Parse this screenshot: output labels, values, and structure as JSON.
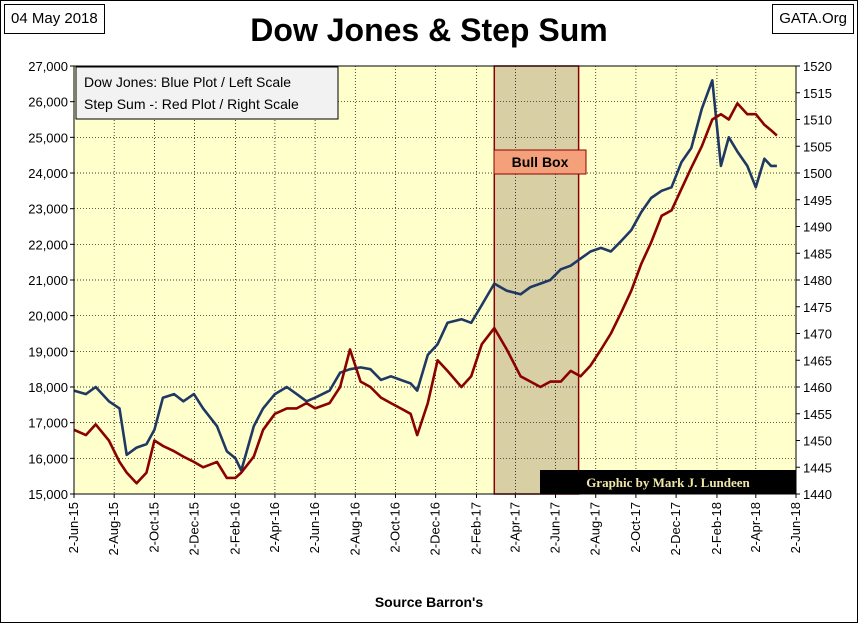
{
  "header": {
    "date": "04 May 2018",
    "source_site": "GATA.Org",
    "title": "Dow Jones & Step Sum"
  },
  "footer": {
    "source": "Source Barron's"
  },
  "legend_lines": [
    "Dow Jones: Blue Plot / Left Scale",
    "Step Sum -: Red Plot / Right Scale"
  ],
  "bull_box_label": "Bull Box",
  "credit": "Graphic by Mark J. Lundeen",
  "colors": {
    "plot_background": "#FFFFCC",
    "dow": "#1F3864",
    "step_sum": "#8B0000",
    "bull_box_fill": "#D9CFA4",
    "bull_box_label_fill": "#F4A07A",
    "bull_box_border": "#8B0000",
    "legend_fill": "#F2F2F2",
    "credit_fill": "#000000",
    "credit_text": "#F2E6A6",
    "grid": "#000000"
  },
  "chart_data": {
    "type": "line",
    "title": "Dow Jones & Step Sum",
    "x_tick_labels": [
      "2-Jun-15",
      "2-Aug-15",
      "2-Oct-15",
      "2-Dec-15",
      "2-Feb-16",
      "2-Apr-16",
      "2-Jun-16",
      "2-Aug-16",
      "2-Oct-16",
      "2-Dec-16",
      "2-Feb-17",
      "2-Apr-17",
      "2-Jun-17",
      "2-Aug-17",
      "2-Oct-17",
      "2-Dec-17",
      "2-Feb-18",
      "2-Apr-18",
      "2-Jun-18"
    ],
    "xlim": [
      "2015-06-02",
      "2018-06-02"
    ],
    "left_axis": {
      "ylim": [
        15000,
        27000
      ],
      "ticks": [
        15000,
        16000,
        17000,
        18000,
        19000,
        20000,
        21000,
        22000,
        23000,
        24000,
        25000,
        26000,
        27000
      ],
      "tick_labels": [
        "15,000",
        "16,000",
        "17,000",
        "18,000",
        "19,000",
        "20,000",
        "21,000",
        "22,000",
        "23,000",
        "24,000",
        "25,000",
        "26,000",
        "27,000"
      ]
    },
    "right_axis": {
      "ylim": [
        1440,
        1520
      ],
      "ticks": [
        1440,
        1445,
        1450,
        1455,
        1460,
        1465,
        1470,
        1475,
        1480,
        1485,
        1490,
        1495,
        1500,
        1505,
        1510,
        1515,
        1520
      ],
      "tick_labels": [
        "1440",
        "1445",
        "1450",
        "1455",
        "1460",
        "1465",
        "1470",
        "1475",
        "1480",
        "1485",
        "1490",
        "1495",
        "1500",
        "1505",
        "1510",
        "1515",
        "1520"
      ]
    },
    "grid": true,
    "bull_box_range": [
      "2017-03-01",
      "2017-07-07"
    ],
    "series": [
      {
        "axis": "left",
        "x": [
          "2015-06-02",
          "2015-06-20",
          "2015-07-05",
          "2015-07-25",
          "2015-08-10",
          "2015-08-21",
          "2015-09-05",
          "2015-09-20",
          "2015-10-02",
          "2015-10-15",
          "2015-11-01",
          "2015-11-15",
          "2015-12-01",
          "2015-12-15",
          "2016-01-05",
          "2016-01-20",
          "2016-02-02",
          "2016-02-11",
          "2016-03-01",
          "2016-03-15",
          "2016-04-02",
          "2016-04-20",
          "2016-05-05",
          "2016-05-20",
          "2016-06-02",
          "2016-06-24",
          "2016-07-10",
          "2016-07-25",
          "2016-08-10",
          "2016-08-25",
          "2016-09-10",
          "2016-09-25",
          "2016-10-10",
          "2016-10-25",
          "2016-11-04",
          "2016-11-20",
          "2016-12-05",
          "2016-12-20",
          "2017-01-10",
          "2017-01-25",
          "2017-02-10",
          "2017-03-01",
          "2017-03-20",
          "2017-04-10",
          "2017-04-25",
          "2017-05-10",
          "2017-05-25",
          "2017-06-10",
          "2017-06-25",
          "2017-07-10",
          "2017-07-25",
          "2017-08-10",
          "2017-08-25",
          "2017-09-10",
          "2017-09-25",
          "2017-10-10",
          "2017-10-25",
          "2017-11-10",
          "2017-11-25",
          "2017-12-10",
          "2017-12-25",
          "2018-01-10",
          "2018-01-26",
          "2018-02-08",
          "2018-02-20",
          "2018-03-05",
          "2018-03-20",
          "2018-04-02",
          "2018-04-15",
          "2018-04-25",
          "2018-05-04"
        ],
        "y": [
          17900,
          17800,
          18000,
          17600,
          17400,
          16100,
          16300,
          16400,
          16800,
          17700,
          17800,
          17600,
          17800,
          17400,
          16900,
          16200,
          16000,
          15660,
          16900,
          17400,
          17800,
          18000,
          17800,
          17600,
          17700,
          17900,
          18400,
          18500,
          18550,
          18500,
          18200,
          18300,
          18200,
          18100,
          17900,
          18900,
          19200,
          19800,
          19900,
          19800,
          20300,
          20900,
          20700,
          20600,
          20800,
          20900,
          21000,
          21300,
          21400,
          21600,
          21800,
          21900,
          21800,
          22100,
          22400,
          22900,
          23300,
          23500,
          23600,
          24300,
          24700,
          25800,
          26600,
          24200,
          25000,
          24600,
          24200,
          23600,
          24400,
          24200,
          24200
        ]
      },
      {
        "axis": "right",
        "x": [
          "2015-06-02",
          "2015-06-20",
          "2015-07-05",
          "2015-07-25",
          "2015-08-10",
          "2015-08-21",
          "2015-09-05",
          "2015-09-20",
          "2015-10-02",
          "2015-10-15",
          "2015-11-01",
          "2015-11-15",
          "2015-12-01",
          "2015-12-15",
          "2016-01-05",
          "2016-01-20",
          "2016-02-02",
          "2016-02-11",
          "2016-03-01",
          "2016-03-15",
          "2016-04-02",
          "2016-04-20",
          "2016-05-05",
          "2016-05-20",
          "2016-06-02",
          "2016-06-24",
          "2016-07-10",
          "2016-07-25",
          "2016-08-10",
          "2016-08-25",
          "2016-09-10",
          "2016-09-25",
          "2016-10-10",
          "2016-10-25",
          "2016-11-04",
          "2016-11-20",
          "2016-12-05",
          "2016-12-20",
          "2017-01-10",
          "2017-01-25",
          "2017-02-10",
          "2017-03-01",
          "2017-03-20",
          "2017-04-10",
          "2017-04-25",
          "2017-05-10",
          "2017-05-25",
          "2017-06-10",
          "2017-06-25",
          "2017-07-10",
          "2017-07-25",
          "2017-08-10",
          "2017-08-25",
          "2017-09-10",
          "2017-09-25",
          "2017-10-10",
          "2017-10-25",
          "2017-11-10",
          "2017-11-25",
          "2017-12-10",
          "2017-12-25",
          "2018-01-10",
          "2018-01-26",
          "2018-02-08",
          "2018-02-20",
          "2018-03-05",
          "2018-03-20",
          "2018-04-02",
          "2018-04-15",
          "2018-04-25",
          "2018-05-04"
        ],
        "y": [
          1452,
          1451,
          1453,
          1450,
          1446,
          1444,
          1442,
          1444,
          1450,
          1449,
          1448,
          1447,
          1446,
          1445,
          1446,
          1443,
          1443,
          1444,
          1447,
          1452,
          1455,
          1456,
          1456,
          1457,
          1456,
          1457,
          1460,
          1467,
          1461,
          1460,
          1458,
          1457,
          1456,
          1455,
          1451,
          1457,
          1465,
          1463,
          1460,
          1462,
          1468,
          1471,
          1467,
          1462,
          1461,
          1460,
          1461,
          1461,
          1463,
          1462,
          1464,
          1467,
          1470,
          1474,
          1478,
          1483,
          1487,
          1492,
          1493,
          1497,
          1501,
          1505,
          1510,
          1511,
          1510,
          1513,
          1511,
          1511,
          1509,
          1508,
          1507
        ]
      }
    ]
  }
}
